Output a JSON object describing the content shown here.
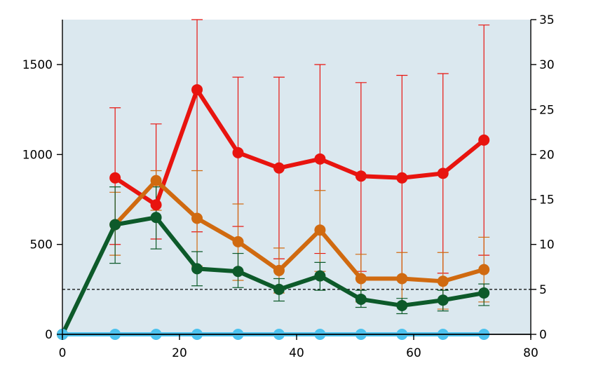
{
  "chart_data": {
    "type": "line",
    "title": "",
    "xlabel": "",
    "ylabel": "",
    "y2label": "",
    "xlim": [
      0,
      80
    ],
    "ylim": [
      0,
      1750
    ],
    "y2lim": [
      0,
      35
    ],
    "x_ticks": [
      "0",
      "20",
      "40",
      "60",
      "80"
    ],
    "y_ticks": [
      "0",
      "500",
      "1000",
      "1500"
    ],
    "y2_ticks": [
      "0",
      "5",
      "10",
      "15",
      "20",
      "25",
      "30",
      "35"
    ],
    "grid": false,
    "legend": "none",
    "background": "#dbe8ef",
    "reference_line": {
      "axis": "right",
      "value": 5,
      "style": "dashed",
      "color": "#000000"
    },
    "series": [
      {
        "axis": "left",
        "color": "#e8140f",
        "x": [
          9,
          16,
          23,
          30,
          37,
          44,
          51,
          58,
          65,
          72
        ],
        "values": [
          870,
          720,
          1360,
          1010,
          925,
          975,
          880,
          870,
          895,
          1080
        ],
        "error_upper": [
          1260,
          1170,
          1750,
          1430,
          1430,
          1500,
          1400,
          1440,
          1450,
          1720
        ],
        "error_lower": [
          500,
          530,
          570,
          600,
          420,
          450,
          350,
          300,
          340,
          440
        ]
      },
      {
        "axis": "left",
        "color": "#d06a10",
        "x": [
          9,
          16,
          23,
          30,
          37,
          44,
          51,
          58,
          65,
          72
        ],
        "values": [
          610,
          855,
          645,
          515,
          355,
          580,
          310,
          310,
          295,
          360
        ],
        "error_upper": [
          790,
          910,
          910,
          725,
          480,
          800,
          445,
          455,
          455,
          540
        ],
        "error_lower": [
          440,
          690,
          380,
          300,
          230,
          350,
          180,
          170,
          140,
          180
        ]
      },
      {
        "axis": "left",
        "color": "#0d5a2a",
        "x": [
          0,
          9,
          16,
          23,
          30,
          37,
          44,
          51,
          58,
          65,
          72
        ],
        "values": [
          0,
          610,
          650,
          365,
          350,
          250,
          325,
          195,
          160,
          190,
          230
        ],
        "error_upper": [
          null,
          820,
          820,
          460,
          450,
          310,
          400,
          245,
          200,
          245,
          280
        ],
        "error_lower": [
          null,
          395,
          475,
          270,
          260,
          185,
          245,
          150,
          115,
          130,
          160
        ]
      },
      {
        "axis": "left",
        "color": "#4cc2ee",
        "x": [
          0,
          9,
          16,
          23,
          30,
          37,
          44,
          51,
          58,
          65,
          72
        ],
        "values": [
          0,
          0,
          0,
          0,
          0,
          0,
          0,
          0,
          0,
          0,
          0
        ]
      }
    ]
  }
}
